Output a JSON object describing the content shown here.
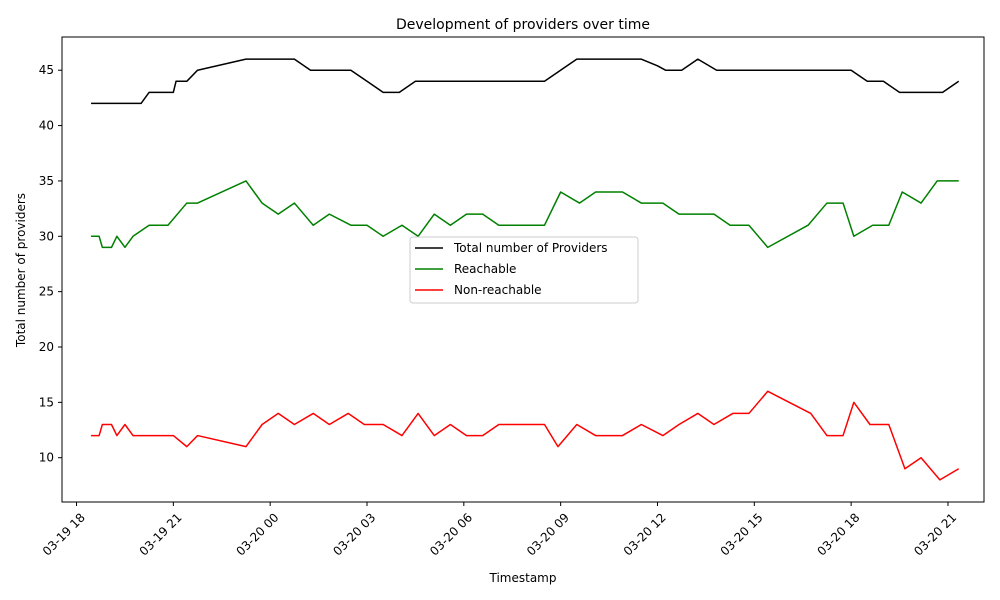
{
  "chart_data": {
    "type": "line",
    "title": "Development of providers over time",
    "xlabel": "Timestamp",
    "ylabel": "Total number of providers",
    "x_tick_labels": [
      "03-19 18",
      "03-19 21",
      "03-20 00",
      "03-20 03",
      "03-20 06",
      "03-20 09",
      "03-20 12",
      "03-20 15",
      "03-20 18",
      "03-20 21"
    ],
    "x_ticks": [
      "2024-03-19 18:00",
      "2024-03-19 21:00",
      "2024-03-20 00:00",
      "2024-03-20 03:00",
      "2024-03-20 06:00",
      "2024-03-20 09:00",
      "2024-03-20 12:00",
      "2024-03-20 15:00",
      "2024-03-20 18:00",
      "2024-03-20 21:00"
    ],
    "xlim": [
      "2024-03-19 17:33",
      "2024-03-20 22:07"
    ],
    "ylim": [
      6,
      48
    ],
    "y_ticks": [
      10,
      15,
      20,
      25,
      30,
      35,
      40,
      45
    ],
    "grid": false,
    "legend_position": "center",
    "series": [
      {
        "name": "Total number of Providers",
        "color": "#000000",
        "points": [
          [
            "2024-03-19 18:27",
            42
          ],
          [
            "2024-03-19 18:45",
            42
          ],
          [
            "2024-03-19 19:00",
            42
          ],
          [
            "2024-03-19 19:15",
            42
          ],
          [
            "2024-03-19 19:28",
            42
          ],
          [
            "2024-03-19 19:45",
            42
          ],
          [
            "2024-03-19 20:00",
            42
          ],
          [
            "2024-03-19 20:15",
            43
          ],
          [
            "2024-03-19 20:30",
            43
          ],
          [
            "2024-03-19 21:00",
            43
          ],
          [
            "2024-03-19 21:05",
            44
          ],
          [
            "2024-03-19 21:25",
            44
          ],
          [
            "2024-03-19 21:45",
            45
          ],
          [
            "2024-03-19 23:15",
            46
          ],
          [
            "2024-03-19 23:45",
            46
          ],
          [
            "2024-03-20 00:15",
            46
          ],
          [
            "2024-03-20 00:45",
            46
          ],
          [
            "2024-03-20 01:15",
            45
          ],
          [
            "2024-03-20 01:45",
            45
          ],
          [
            "2024-03-20 02:15",
            45
          ],
          [
            "2024-03-20 02:30",
            45
          ],
          [
            "2024-03-20 03:00",
            44
          ],
          [
            "2024-03-20 03:30",
            43
          ],
          [
            "2024-03-20 04:00",
            43
          ],
          [
            "2024-03-20 04:30",
            44
          ],
          [
            "2024-03-20 05:00",
            44
          ],
          [
            "2024-03-20 05:30",
            44
          ],
          [
            "2024-03-20 06:00",
            44
          ],
          [
            "2024-03-20 07:00",
            44
          ],
          [
            "2024-03-20 08:00",
            44
          ],
          [
            "2024-03-20 08:30",
            44
          ],
          [
            "2024-03-20 09:30",
            46
          ],
          [
            "2024-03-20 10:00",
            46
          ],
          [
            "2024-03-20 11:00",
            46
          ],
          [
            "2024-03-20 11:30",
            46
          ],
          [
            "2024-03-20 12:00",
            45.4
          ],
          [
            "2024-03-20 12:15",
            45
          ],
          [
            "2024-03-20 12:45",
            45
          ],
          [
            "2024-03-20 13:15",
            46
          ],
          [
            "2024-03-20 13:50",
            45
          ],
          [
            "2024-03-20 14:45",
            45
          ],
          [
            "2024-03-20 15:00",
            45
          ],
          [
            "2024-03-20 16:00",
            45
          ],
          [
            "2024-03-20 16:30",
            45
          ],
          [
            "2024-03-20 17:00",
            45
          ],
          [
            "2024-03-20 18:00",
            45
          ],
          [
            "2024-03-20 18:30",
            44
          ],
          [
            "2024-03-20 19:00",
            44
          ],
          [
            "2024-03-20 19:30",
            43
          ],
          [
            "2024-03-20 20:00",
            43
          ],
          [
            "2024-03-20 20:50",
            43
          ],
          [
            "2024-03-20 21:20",
            44
          ]
        ]
      },
      {
        "name": "Reachable",
        "color": "#008000",
        "points": [
          [
            "2024-03-19 18:27",
            30
          ],
          [
            "2024-03-19 18:42",
            30
          ],
          [
            "2024-03-19 18:48",
            29
          ],
          [
            "2024-03-19 19:05",
            29
          ],
          [
            "2024-03-19 19:15",
            30
          ],
          [
            "2024-03-19 19:30",
            29
          ],
          [
            "2024-03-19 19:45",
            30
          ],
          [
            "2024-03-19 20:15",
            31
          ],
          [
            "2024-03-19 20:50",
            31
          ],
          [
            "2024-03-19 21:25",
            33
          ],
          [
            "2024-03-19 21:45",
            33
          ],
          [
            "2024-03-19 23:15",
            35
          ],
          [
            "2024-03-19 23:45",
            33
          ],
          [
            "2024-03-20 00:15",
            32
          ],
          [
            "2024-03-20 00:45",
            33
          ],
          [
            "2024-03-20 01:20",
            31
          ],
          [
            "2024-03-20 01:50",
            32
          ],
          [
            "2024-03-20 02:30",
            31
          ],
          [
            "2024-03-20 03:00",
            31
          ],
          [
            "2024-03-20 03:30",
            30
          ],
          [
            "2024-03-20 04:05",
            31
          ],
          [
            "2024-03-20 04:35",
            30
          ],
          [
            "2024-03-20 05:05",
            32
          ],
          [
            "2024-03-20 05:35",
            31
          ],
          [
            "2024-03-20 06:05",
            32
          ],
          [
            "2024-03-20 06:35",
            32
          ],
          [
            "2024-03-20 07:05",
            31
          ],
          [
            "2024-03-20 07:35",
            31
          ],
          [
            "2024-03-20 08:30",
            31
          ],
          [
            "2024-03-20 09:00",
            34
          ],
          [
            "2024-03-20 09:35",
            33
          ],
          [
            "2024-03-20 10:05",
            34
          ],
          [
            "2024-03-20 10:55",
            34
          ],
          [
            "2024-03-20 11:30",
            33
          ],
          [
            "2024-03-20 12:10",
            33
          ],
          [
            "2024-03-20 12:40",
            32
          ],
          [
            "2024-03-20 13:10",
            32
          ],
          [
            "2024-03-20 13:45",
            32
          ],
          [
            "2024-03-20 14:15",
            31
          ],
          [
            "2024-03-20 14:50",
            31
          ],
          [
            "2024-03-20 15:25",
            29
          ],
          [
            "2024-03-20 16:40",
            31
          ],
          [
            "2024-03-20 17:15",
            33
          ],
          [
            "2024-03-20 17:45",
            33
          ],
          [
            "2024-03-20 18:05",
            30
          ],
          [
            "2024-03-20 18:40",
            31
          ],
          [
            "2024-03-20 19:10",
            31
          ],
          [
            "2024-03-20 19:35",
            34
          ],
          [
            "2024-03-20 20:10",
            33
          ],
          [
            "2024-03-20 20:40",
            35
          ],
          [
            "2024-03-20 21:20",
            35
          ]
        ]
      },
      {
        "name": "Non-reachable",
        "color": "#ff0000",
        "points": [
          [
            "2024-03-19 18:27",
            12
          ],
          [
            "2024-03-19 18:42",
            12
          ],
          [
            "2024-03-19 18:48",
            13
          ],
          [
            "2024-03-19 19:05",
            13
          ],
          [
            "2024-03-19 19:15",
            12
          ],
          [
            "2024-03-19 19:30",
            13
          ],
          [
            "2024-03-19 19:45",
            12
          ],
          [
            "2024-03-19 20:15",
            12
          ],
          [
            "2024-03-19 21:00",
            12
          ],
          [
            "2024-03-19 21:25",
            11
          ],
          [
            "2024-03-19 21:45",
            12
          ],
          [
            "2024-03-19 23:15",
            11
          ],
          [
            "2024-03-19 23:45",
            13
          ],
          [
            "2024-03-20 00:15",
            14
          ],
          [
            "2024-03-20 00:45",
            13
          ],
          [
            "2024-03-20 01:20",
            14
          ],
          [
            "2024-03-20 01:50",
            13
          ],
          [
            "2024-03-20 02:25",
            14
          ],
          [
            "2024-03-20 02:55",
            13
          ],
          [
            "2024-03-20 03:30",
            13
          ],
          [
            "2024-03-20 04:05",
            12
          ],
          [
            "2024-03-20 04:35",
            14
          ],
          [
            "2024-03-20 05:05",
            12
          ],
          [
            "2024-03-20 05:35",
            13
          ],
          [
            "2024-03-20 06:05",
            12
          ],
          [
            "2024-03-20 06:35",
            12
          ],
          [
            "2024-03-20 07:05",
            13
          ],
          [
            "2024-03-20 07:35",
            13
          ],
          [
            "2024-03-20 08:30",
            13
          ],
          [
            "2024-03-20 08:55",
            11
          ],
          [
            "2024-03-20 09:30",
            13
          ],
          [
            "2024-03-20 10:05",
            12
          ],
          [
            "2024-03-20 10:55",
            12
          ],
          [
            "2024-03-20 11:30",
            13
          ],
          [
            "2024-03-20 12:10",
            12
          ],
          [
            "2024-03-20 12:40",
            13
          ],
          [
            "2024-03-20 13:15",
            14
          ],
          [
            "2024-03-20 13:45",
            13
          ],
          [
            "2024-03-20 14:20",
            14
          ],
          [
            "2024-03-20 14:50",
            14
          ],
          [
            "2024-03-20 15:25",
            16
          ],
          [
            "2024-03-20 16:45",
            14
          ],
          [
            "2024-03-20 17:15",
            12
          ],
          [
            "2024-03-20 17:45",
            12
          ],
          [
            "2024-03-20 18:05",
            15
          ],
          [
            "2024-03-20 18:35",
            13
          ],
          [
            "2024-03-20 19:10",
            13
          ],
          [
            "2024-03-20 19:40",
            9
          ],
          [
            "2024-03-20 20:10",
            10
          ],
          [
            "2024-03-20 20:45",
            8
          ],
          [
            "2024-03-20 21:20",
            9
          ]
        ]
      }
    ]
  }
}
